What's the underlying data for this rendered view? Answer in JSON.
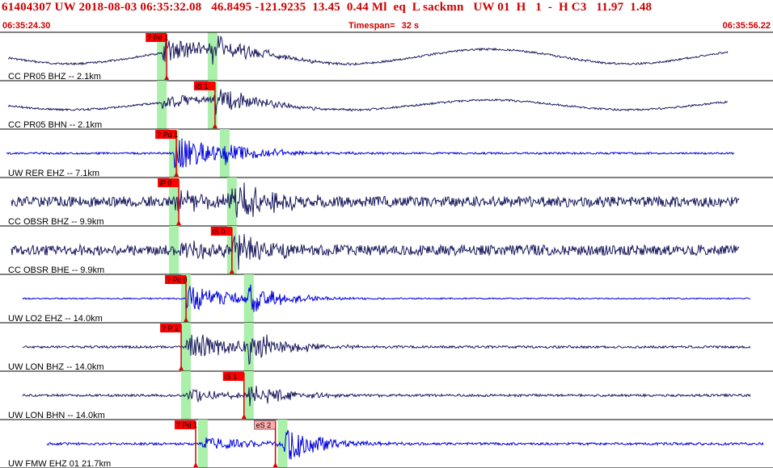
{
  "header": {
    "summary": "61404307 UW 2018-08-03 06:35:32.08   46.8495 -121.9235  13.45  0.44 Ml  eq  L sackmn   UW 01  H   1  -  H C3   11.97  1.48",
    "time_start": "06:35:24.30",
    "timespan_label": "Timespan=",
    "timespan_value": "32 s",
    "time_end": "06:35:56.22"
  },
  "colors": {
    "header_text": "#cc0000",
    "pick_flag": "#ff0000",
    "pick_flag_alt": "#ffaaaa",
    "pick_window": "#aaf0aa",
    "trace_dark": "#1a1a5e",
    "trace_blue": "#0000dd"
  },
  "traces": [
    {
      "label": "CC PR05 BHZ -- 2.1km",
      "color": "trace_dark",
      "picks": [
        {
          "label": "? Pd 1",
          "time": 6.9,
          "style": "red"
        }
      ],
      "windows": [
        6.7,
        8.8
      ]
    },
    {
      "label": "CC PR05 BHN -- 2.1km",
      "color": "trace_dark",
      "picks": [
        {
          "label": "iS 1",
          "time": 8.9,
          "style": "red"
        }
      ],
      "windows": [
        6.7,
        8.8
      ]
    },
    {
      "label": "UW RER EHZ -- 7.1km",
      "color": "trace_blue",
      "picks": [
        {
          "label": "? Pd 1",
          "time": 7.3,
          "style": "red"
        }
      ],
      "windows": [
        7.2,
        9.3
      ]
    },
    {
      "label": "CC OBSR BHZ -- 9.9km",
      "color": "trace_dark",
      "picks": [
        {
          "label": "iP 0",
          "time": 7.4,
          "style": "red"
        }
      ],
      "windows": [
        7.2,
        9.6
      ]
    },
    {
      "label": "CC OBSR BHE -- 9.9km",
      "color": "trace_dark",
      "picks": [
        {
          "label": "iS 0",
          "time": 9.6,
          "style": "red"
        }
      ],
      "windows": [
        7.2,
        9.6
      ]
    },
    {
      "label": "UW LO2 EHZ -- 14.0km",
      "color": "trace_blue",
      "picks": [
        {
          "label": "? Pc 0",
          "time": 7.7,
          "style": "red"
        }
      ],
      "windows": [
        7.7,
        10.3
      ]
    },
    {
      "label": "UW LON BHZ -- 14.0km",
      "color": "trace_dark",
      "picks": [
        {
          "label": "? P 2",
          "time": 7.5,
          "style": "red"
        }
      ],
      "windows": [
        7.7,
        10.3
      ]
    },
    {
      "label": "UW LON BHN -- 14.0km",
      "color": "trace_dark",
      "picks": [
        {
          "label": "iS 1",
          "time": 10.1,
          "style": "red"
        }
      ],
      "windows": [
        7.7,
        10.3
      ]
    },
    {
      "label": "UW FMW EHZ 01 21.7km",
      "color": "trace_blue",
      "picks": [
        {
          "label": "? Pd 1",
          "time": 8.1,
          "style": "red"
        },
        {
          "label": "eS 2",
          "time": 11.4,
          "style": "alt"
        }
      ],
      "windows": [
        8.4,
        11.7
      ]
    }
  ]
}
